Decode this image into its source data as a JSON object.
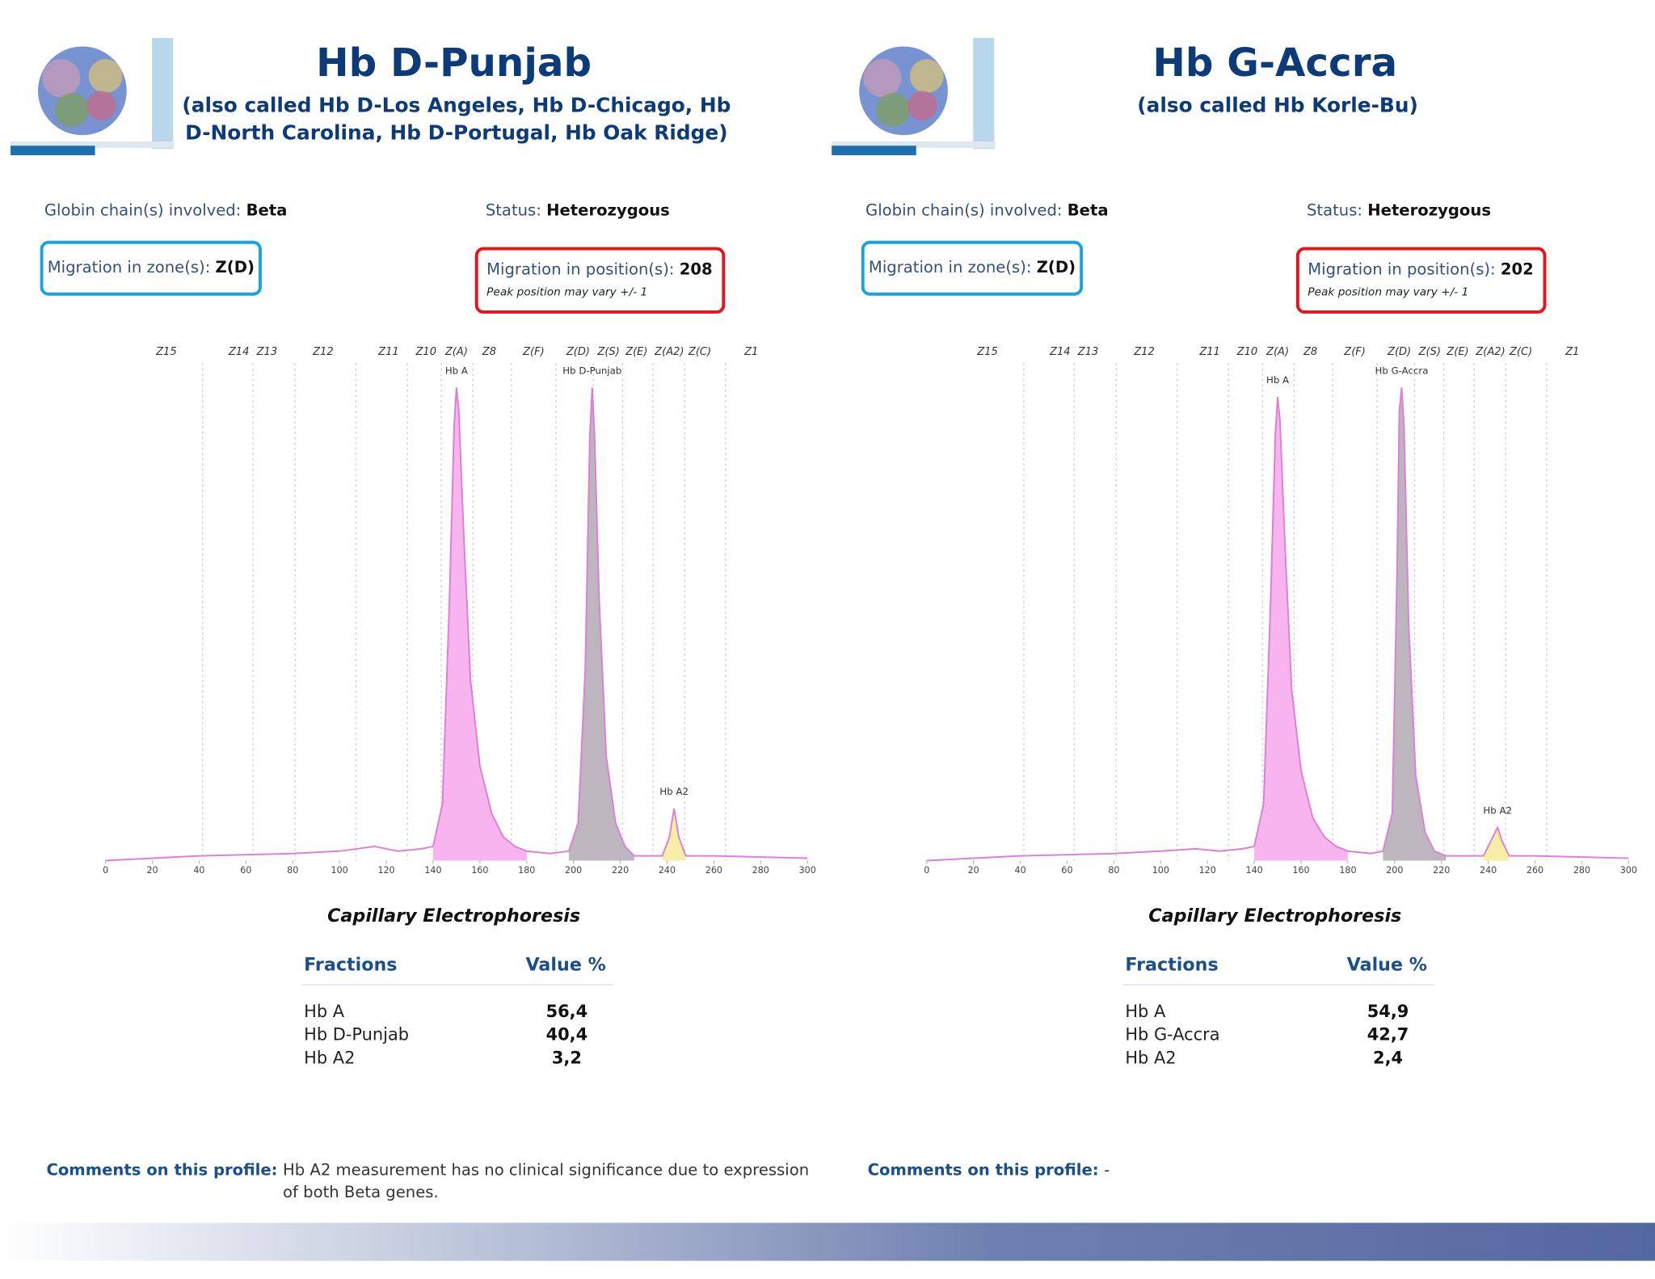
{
  "panels": [
    {
      "title": "Hb D-Punjab",
      "subtitle": "(also called Hb D-Los Angeles, Hb D-Chicago, Hb D-North Carolina, Hb D-Portugal, Hb Oak Ridge)",
      "globin": {
        "label": "Globin chain(s) involved:",
        "value": "Beta"
      },
      "status": {
        "label": "Status:",
        "value": "Heterozygous"
      },
      "zone": {
        "label": "Migration in zone(s):",
        "value": "Z(D)"
      },
      "position": {
        "label": "Migration in position(s):",
        "value": 208,
        "note": "Peak position may vary +/- 1"
      },
      "chart_data": {
        "type": "line",
        "xlim": [
          0,
          300
        ],
        "xticks": [
          0,
          20,
          40,
          60,
          80,
          100,
          120,
          140,
          160,
          180,
          200,
          220,
          240,
          260,
          280,
          300
        ],
        "ylim": [
          0,
          100
        ],
        "zones": [
          {
            "label": "Z15",
            "x": 26
          },
          {
            "label": "Z14",
            "x": 57
          },
          {
            "label": "Z13",
            "x": 69
          },
          {
            "label": "Z12",
            "x": 93
          },
          {
            "label": "Z11",
            "x": 121
          },
          {
            "label": "Z10",
            "x": 137
          },
          {
            "label": "Z(A)",
            "x": 150
          },
          {
            "label": "Z8",
            "x": 164
          },
          {
            "label": "Z(F)",
            "x": 183
          },
          {
            "label": "Z(D)",
            "x": 202
          },
          {
            "label": "Z(S)",
            "x": 215
          },
          {
            "label": "Z(E)",
            "x": 227
          },
          {
            "label": "Z(A2)",
            "x": 241
          },
          {
            "label": "Z(C)",
            "x": 254
          },
          {
            "label": "Z1",
            "x": 276
          }
        ],
        "series": [
          {
            "color": "#dd7fd8",
            "x": [
              0,
              40,
              80,
              100,
              115,
              125,
              135,
              140,
              144,
              147,
              149,
              150,
              151,
              153,
              156,
              160,
              165,
              170,
              175,
              180,
              190,
              198,
              202,
              205,
              207,
              208,
              209,
              211,
              214,
              218,
              222,
              226,
              232,
              238,
              241,
              243,
              245,
              248,
              260,
              300
            ],
            "values": [
              0,
              1,
              1.5,
              2,
              3,
              2,
              2.5,
              3,
              12,
              55,
              92,
              100,
              95,
              70,
              38,
              20,
              10,
              5,
              3,
              2,
              1.5,
              2,
              8,
              40,
              90,
              100,
              90,
              55,
              22,
              8,
              3,
              1,
              1,
              1,
              5,
              11,
              5,
              1,
              1,
              0.5
            ]
          },
          {
            "name": "Hb A",
            "color": "#f7b4ef",
            "x": [
              140,
              144,
              147,
              149,
              150,
              151,
              153,
              156,
              160,
              165,
              170,
              175,
              180
            ],
            "values": [
              3,
              12,
              55,
              92,
              100,
              95,
              70,
              38,
              20,
              10,
              5,
              3,
              2
            ]
          },
          {
            "name": "Hb D-Punjab",
            "color": "#bdb6be",
            "x": [
              198,
              202,
              205,
              207,
              208,
              209,
              211,
              214,
              218,
              222,
              226
            ],
            "values": [
              2,
              8,
              40,
              90,
              100,
              90,
              55,
              22,
              8,
              3,
              1
            ]
          },
          {
            "name": "Hb A2",
            "color": "#f8eea6",
            "x": [
              238,
              241,
              243,
              245,
              248
            ],
            "values": [
              1,
              5,
              11,
              5,
              1
            ]
          }
        ]
      },
      "table": {
        "title": "Capillary Electrophoresis",
        "columns": [
          "Fractions",
          "Value %"
        ],
        "rows": [
          [
            "Hb A",
            "56,4"
          ],
          [
            "Hb D-Punjab",
            "40,4"
          ],
          [
            "Hb A2",
            "3,2"
          ]
        ]
      },
      "comments": {
        "label": "Comments on this profile:",
        "text": "Hb A2 measurement has no clinical significance due to expression of both Beta genes."
      }
    },
    {
      "title": "Hb G-Accra",
      "subtitle": "(also called Hb Korle-Bu)",
      "globin": {
        "label": "Globin chain(s) involved:",
        "value": "Beta"
      },
      "status": {
        "label": "Status:",
        "value": "Heterozygous"
      },
      "zone": {
        "label": "Migration in zone(s):",
        "value": "Z(D)"
      },
      "position": {
        "label": "Migration in position(s):",
        "value": 202,
        "note": "Peak position may vary +/- 1"
      },
      "chart_data": {
        "type": "line",
        "xlim": [
          0,
          300
        ],
        "xticks": [
          0,
          20,
          40,
          60,
          80,
          100,
          120,
          140,
          160,
          180,
          200,
          220,
          240,
          260,
          280,
          300
        ],
        "ylim": [
          0,
          100
        ],
        "zones": [
          {
            "label": "Z15",
            "x": 26
          },
          {
            "label": "Z14",
            "x": 57
          },
          {
            "label": "Z13",
            "x": 69
          },
          {
            "label": "Z12",
            "x": 93
          },
          {
            "label": "Z11",
            "x": 121
          },
          {
            "label": "Z10",
            "x": 137
          },
          {
            "label": "Z(A)",
            "x": 150
          },
          {
            "label": "Z8",
            "x": 164
          },
          {
            "label": "Z(F)",
            "x": 183
          },
          {
            "label": "Z(D)",
            "x": 202
          },
          {
            "label": "Z(S)",
            "x": 215
          },
          {
            "label": "Z(E)",
            "x": 227
          },
          {
            "label": "Z(A2)",
            "x": 241
          },
          {
            "label": "Z(C)",
            "x": 254
          },
          {
            "label": "Z1",
            "x": 276
          }
        ],
        "series": [
          {
            "color": "#dd7fd8",
            "x": [
              0,
              40,
              80,
              100,
              115,
              125,
              135,
              140,
              144,
              147,
              149,
              150,
              151,
              153,
              156,
              160,
              165,
              170,
              175,
              180,
              190,
              195,
              199,
              201,
              202,
              203,
              204,
              206,
              209,
              213,
              217,
              222,
              230,
              238,
              241,
              244,
              246,
              249,
              260,
              300
            ],
            "values": [
              0,
              1,
              1.5,
              2,
              2.5,
              2,
              2.5,
              3,
              12,
              55,
              90,
              98,
              93,
              68,
              36,
              19,
              9,
              5,
              3,
              2,
              1.5,
              2,
              10,
              60,
              95,
              100,
              92,
              50,
              18,
              6,
              2,
              1,
              1,
              1,
              4,
              7,
              4,
              1,
              1,
              0.5
            ]
          },
          {
            "name": "Hb A",
            "color": "#f7b4ef",
            "x": [
              140,
              144,
              147,
              149,
              150,
              151,
              153,
              156,
              160,
              165,
              170,
              175,
              180
            ],
            "values": [
              3,
              12,
              55,
              90,
              98,
              93,
              68,
              36,
              19,
              9,
              5,
              3,
              2
            ]
          },
          {
            "name": "Hb G-Accra",
            "color": "#bdb6be",
            "x": [
              195,
              199,
              201,
              202,
              203,
              204,
              206,
              209,
              213,
              217,
              222
            ],
            "values": [
              2,
              10,
              60,
              95,
              100,
              92,
              50,
              18,
              6,
              2,
              1
            ]
          },
          {
            "name": "Hb A2",
            "color": "#f8eea6",
            "x": [
              238,
              241,
              244,
              246,
              249
            ],
            "values": [
              1,
              4,
              7,
              4,
              1
            ]
          }
        ]
      },
      "table": {
        "title": "Capillary Electrophoresis",
        "columns": [
          "Fractions",
          "Value %"
        ],
        "rows": [
          [
            "Hb A",
            "54,9"
          ],
          [
            "Hb G-Accra",
            "42,7"
          ],
          [
            "Hb A2",
            "2,4"
          ]
        ]
      },
      "comments": {
        "label": "Comments on this profile:",
        "text": "-"
      }
    }
  ]
}
